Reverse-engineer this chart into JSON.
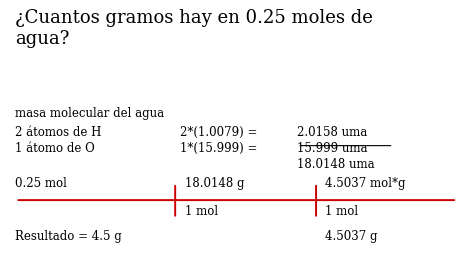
{
  "title": "¿Cuantos gramos hay en 0.25 moles de\nagua?",
  "title_fontsize": 13,
  "subtitle": "masa molecular del agua",
  "subtitle_fontsize": 8.5,
  "row1_col1": "2 átomos de H",
  "row1_col2": "2*(1.0079) =",
  "row1_col3": "2.0158 uma",
  "row2_col1": "1 átomo de O",
  "row2_col2": "1*(15.999) =",
  "row2_col3": "15.999 uma",
  "row3_col3": "18.0148 uma",
  "fraction_top_left": "0.25 mol",
  "fraction_top_mid": "18.0148 g",
  "fraction_top_right": "4.5037 mol*g",
  "fraction_bot_mid": "1 mol",
  "fraction_bot_right": "1 mol",
  "result_right": "4.5037 g",
  "resultado": "Resultado = 4.5 g",
  "bg_color": "#ffffff",
  "text_color": "#000000",
  "line_color": "#cc0000",
  "underline_color": "#000000",
  "text_fontsize": 8.5,
  "title_fontsize2": 13
}
